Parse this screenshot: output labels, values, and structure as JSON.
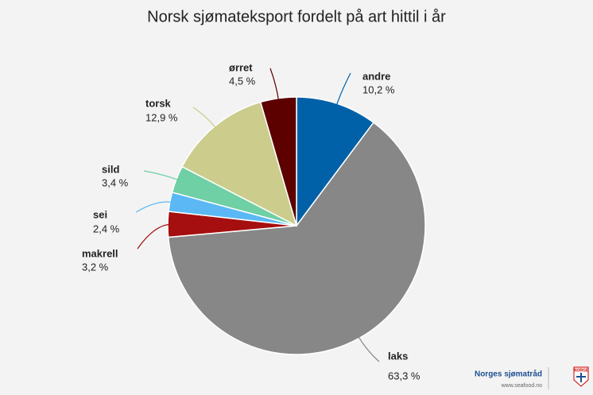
{
  "chart_data": {
    "type": "pie",
    "title": "Norsk sjømateksport fordelt på art hittil i år",
    "categories": [
      "andre",
      "laks",
      "makrell",
      "sei",
      "sild",
      "torsk",
      "ørret"
    ],
    "values": [
      10.2,
      63.3,
      3.2,
      2.4,
      3.4,
      12.9,
      4.5
    ],
    "value_labels": [
      "10,2 %",
      "63,3 %",
      "3,2 %",
      "2,4 %",
      "3,4 %",
      "12,9 %",
      "4,5 %"
    ],
    "colors": [
      "#0061a8",
      "#878787",
      "#a50f0f",
      "#5bb8f5",
      "#6fcfa5",
      "#cccc8c",
      "#5c0000"
    ]
  },
  "logo": {
    "name": "Norges sjømatråd",
    "url": "www.seafood.no",
    "badge": "NORGE"
  }
}
